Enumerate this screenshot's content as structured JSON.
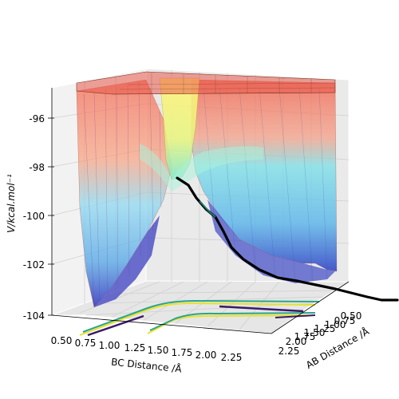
{
  "chart_data": {
    "type": "surface3d",
    "zlabel": "V/kcal.mol⁻¹",
    "xlabel": "BC Distance /Å",
    "ylabel": "AB Distance /Å",
    "z_ticks": [
      "-96",
      "-98",
      "-100",
      "-102",
      "-104"
    ],
    "x_ticks": [
      "0.50",
      "0.75",
      "1.00",
      "1.25",
      "1.50",
      "1.75",
      "2.00",
      "2.25"
    ],
    "y_ticks": [
      "0.50",
      "0.75",
      "1.00",
      "1.25",
      "1.50",
      "1.75",
      "2.00",
      "2.25"
    ],
    "zlim": [
      -104,
      -95
    ],
    "xlim": [
      0.5,
      2.4
    ],
    "ylim": [
      0.5,
      2.4
    ],
    "surface_colormap": "jet",
    "trajectory_color": "#000000",
    "grid": true
  }
}
